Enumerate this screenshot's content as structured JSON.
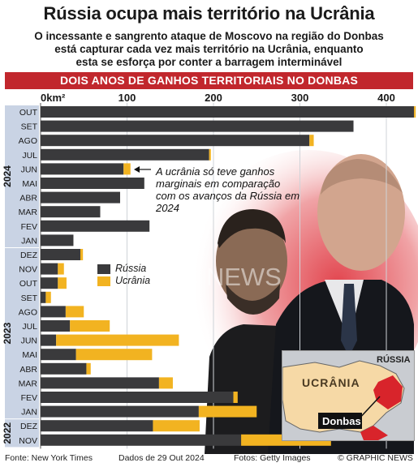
{
  "title": "Rússia ocupa mais território na Ucrânia",
  "subtitle_lines": [
    "O incessante e sangrento ataque de Moscovo na região do Donbas",
    "está capturar cada vez mais território na Ucrânia, enquanto",
    "esta se esforça por conter a barragem interminável"
  ],
  "banner": "DOIS ANOS DE GANHOS TERRITORIAIS NO DONBAS",
  "annotation": "A ucrânia só teve ganhos marginais em comparação com os avanços da Rússia em 2024",
  "legend": {
    "russia": "Rússia",
    "ukraine": "Ucrânia"
  },
  "watermark": "GRAPHIC NEWS",
  "map": {
    "russia_label": "RÚSSIA",
    "ukraine_label": "UCRÂNIA",
    "donbas_label": "Donbas"
  },
  "footer": {
    "source": "Fonte: New York Times",
    "date": "Dados de 29 Out 2024",
    "photos": "Fotos: Getty Images",
    "credit": "© GRAPHIC NEWS"
  },
  "colors": {
    "russia": "#3a3a3c",
    "ukraine": "#f2b321",
    "banner": "#c1272d",
    "year_band": "#c9d3e4"
  },
  "chart_data": {
    "type": "bar",
    "orientation": "horizontal",
    "stacked": true,
    "x_unit_label": "0km²",
    "x_ticks": [
      0,
      100,
      200,
      300,
      400
    ],
    "xlim": [
      0,
      430
    ],
    "categories": [
      "OUT",
      "SET",
      "AGO",
      "JUL",
      "JUN",
      "MAI",
      "ABR",
      "MAR",
      "FEV",
      "JAN",
      "DEZ",
      "NOV",
      "OUT",
      "SET",
      "AGO",
      "JUL",
      "JUN",
      "MAI",
      "ABR",
      "MAR",
      "FEV",
      "JAN",
      "DEZ",
      "NOV"
    ],
    "year_groups": [
      {
        "label": "2024",
        "from": 0,
        "to": 9
      },
      {
        "label": "2023",
        "from": 10,
        "to": 21
      },
      {
        "label": "2022",
        "from": 22,
        "to": 23
      }
    ],
    "series": [
      {
        "name": "Rússia",
        "values": [
          432,
          362,
          311,
          195,
          96,
          120,
          92,
          69,
          126,
          38,
          46,
          20,
          20,
          6,
          29,
          34,
          18,
          41,
          53,
          137,
          223,
          183,
          130,
          232
        ]
      },
      {
        "name": "Ucrânia",
        "values": [
          2,
          0,
          5,
          2,
          8,
          0,
          0,
          0,
          0,
          0,
          3,
          7,
          10,
          6,
          21,
          46,
          142,
          88,
          5,
          16,
          5,
          67,
          54,
          104
        ]
      }
    ]
  }
}
